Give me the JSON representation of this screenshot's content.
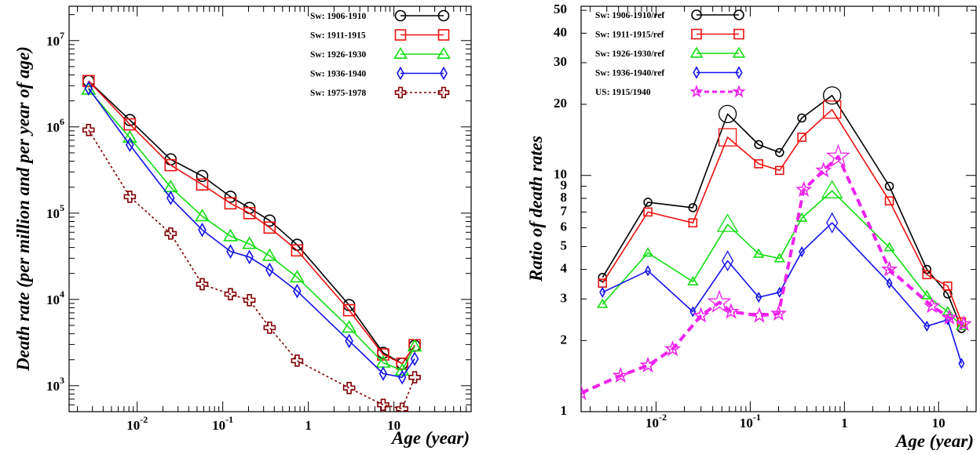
{
  "chart_data": [
    {
      "type": "line",
      "xlabel": "Age (year)",
      "ylabel": "Death rate (per million and per year of age)",
      "xscale": "log",
      "yscale": "log",
      "xlim": [
        0.0016,
        80
      ],
      "ylim": [
        500,
        25000000
      ],
      "legend_position": "top-right",
      "x_tick_labels": [
        {
          "value": 0.01,
          "base": "10",
          "exp": "-2"
        },
        {
          "value": 0.1,
          "base": "10",
          "exp": "-1"
        },
        {
          "value": 1,
          "base": "1",
          "exp": ""
        },
        {
          "value": 10,
          "base": "10",
          "exp": ""
        }
      ],
      "y_tick_labels": [
        {
          "value": 1000,
          "base": "10",
          "exp": "3"
        },
        {
          "value": 10000,
          "base": "10",
          "exp": "4"
        },
        {
          "value": 100000,
          "base": "10",
          "exp": "5"
        },
        {
          "value": 1000000,
          "base": "10",
          "exp": "6"
        },
        {
          "value": 10000000,
          "base": "10",
          "exp": "7"
        }
      ],
      "series": [
        {
          "name": "Sw: 1906-1910",
          "color": "#000000",
          "marker": "circle",
          "dash": "",
          "points": [
            [
              0.0027,
              3400000
            ],
            [
              0.0082,
              1200000
            ],
            [
              0.0246,
              420000
            ],
            [
              0.0575,
              270000
            ],
            [
              0.123,
              155000
            ],
            [
              0.205,
              115000
            ],
            [
              0.353,
              82000
            ],
            [
              0.74,
              43000
            ],
            [
              3.0,
              8600
            ],
            [
              7.5,
              2400
            ],
            [
              12.5,
              1800
            ],
            [
              17.5,
              2900
            ]
          ]
        },
        {
          "name": "Sw: 1911-1915",
          "color": "#ee1111",
          "marker": "square",
          "dash": "",
          "points": [
            [
              0.0027,
              3400000
            ],
            [
              0.0082,
              1070000
            ],
            [
              0.0246,
              360000
            ],
            [
              0.0575,
              215000
            ],
            [
              0.123,
              130000
            ],
            [
              0.205,
              100000
            ],
            [
              0.353,
              68000
            ],
            [
              0.74,
              37000
            ],
            [
              3.0,
              7500
            ],
            [
              7.5,
              2300
            ],
            [
              12.5,
              1800
            ],
            [
              17.5,
              2950
            ]
          ]
        },
        {
          "name": "Sw: 1926-1930",
          "color": "#11dd11",
          "marker": "triangle",
          "dash": "",
          "points": [
            [
              0.0027,
              2700000
            ],
            [
              0.0082,
              750000
            ],
            [
              0.0246,
              200000
            ],
            [
              0.0575,
              92000
            ],
            [
              0.123,
              54000
            ],
            [
              0.205,
              44000
            ],
            [
              0.353,
              32000
            ],
            [
              0.74,
              18000
            ],
            [
              3.0,
              4700
            ],
            [
              7.5,
              1850
            ],
            [
              12.5,
              1500
            ],
            [
              17.5,
              2850
            ]
          ]
        },
        {
          "name": "Sw: 1936-1940",
          "color": "#1111ee",
          "marker": "diamond",
          "dash": "",
          "points": [
            [
              0.0027,
              2800000
            ],
            [
              0.0082,
              620000
            ],
            [
              0.0246,
              150000
            ],
            [
              0.0575,
              64000
            ],
            [
              0.123,
              36000
            ],
            [
              0.205,
              31000
            ],
            [
              0.353,
              22000
            ],
            [
              0.74,
              12500
            ],
            [
              3.0,
              3300
            ],
            [
              7.5,
              1380
            ],
            [
              12.5,
              1250
            ],
            [
              17.5,
              2050
            ]
          ]
        },
        {
          "name": "Sw: 1975-1978",
          "color": "#800000",
          "marker": "cross",
          "dash": "3,3",
          "points": [
            [
              0.0027,
              920000
            ],
            [
              0.0082,
              155000
            ],
            [
              0.0246,
              58000
            ],
            [
              0.0575,
              15000
            ],
            [
              0.123,
              11500
            ],
            [
              0.205,
              9800
            ],
            [
              0.353,
              4700
            ],
            [
              0.74,
              1950
            ],
            [
              3.0,
              940
            ],
            [
              7.5,
              600
            ],
            [
              12.5,
              540
            ],
            [
              17.5,
              1250
            ]
          ]
        }
      ]
    },
    {
      "type": "line",
      "xlabel": "Age (year)",
      "ylabel": "Ratio of death rates",
      "xscale": "log",
      "yscale": "log",
      "xlim": [
        0.0016,
        25
      ],
      "ylim": [
        1,
        52
      ],
      "legend_position": "top-left",
      "x_tick_labels": [
        {
          "value": 0.01,
          "base": "10",
          "exp": "-2"
        },
        {
          "value": 0.1,
          "base": "10",
          "exp": "-1"
        },
        {
          "value": 1,
          "base": "1",
          "exp": ""
        },
        {
          "value": 10,
          "base": "10",
          "exp": ""
        }
      ],
      "y_tick_labels": [
        {
          "value": 1,
          "base": "1",
          "exp": ""
        },
        {
          "value": 2,
          "base": "2",
          "exp": ""
        },
        {
          "value": 3,
          "base": "3",
          "exp": ""
        },
        {
          "value": 4,
          "base": "4",
          "exp": ""
        },
        {
          "value": 5,
          "base": "5",
          "exp": ""
        },
        {
          "value": 6,
          "base": "6",
          "exp": ""
        },
        {
          "value": 7,
          "base": "7",
          "exp": ""
        },
        {
          "value": 8,
          "base": "8",
          "exp": ""
        },
        {
          "value": 9,
          "base": "9",
          "exp": ""
        },
        {
          "value": 10,
          "base": "10",
          "exp": ""
        },
        {
          "value": 20,
          "base": "20",
          "exp": ""
        },
        {
          "value": 30,
          "base": "30",
          "exp": ""
        },
        {
          "value": 40,
          "base": "40",
          "exp": ""
        },
        {
          "value": 50,
          "base": "50",
          "exp": ""
        }
      ],
      "series": [
        {
          "name": "Sw: 1906-1910/ref",
          "color": "#000000",
          "marker": "circle",
          "dash": "",
          "points": [
            [
              0.0027,
              3.7
            ],
            [
              0.0082,
              7.7
            ],
            [
              0.0246,
              7.3
            ],
            [
              0.0575,
              18.2
            ],
            [
              0.123,
              13.5
            ],
            [
              0.205,
              12.5
            ],
            [
              0.353,
              17.5
            ],
            [
              0.74,
              21.8
            ],
            [
              3.0,
              9.0
            ],
            [
              7.5,
              4.0
            ],
            [
              12.5,
              3.15
            ],
            [
              17.5,
              2.25
            ]
          ]
        },
        {
          "name": "Sw: 1911-1915/ref",
          "color": "#ee1111",
          "marker": "square",
          "dash": "",
          "points": [
            [
              0.0027,
              3.5
            ],
            [
              0.0082,
              7.0
            ],
            [
              0.0246,
              6.3
            ],
            [
              0.0575,
              14.5
            ],
            [
              0.123,
              11.2
            ],
            [
              0.205,
              10.5
            ],
            [
              0.353,
              14.5
            ],
            [
              0.74,
              19.0
            ],
            [
              3.0,
              7.8
            ],
            [
              7.5,
              3.8
            ],
            [
              12.5,
              3.4
            ],
            [
              17.5,
              2.4
            ]
          ]
        },
        {
          "name": "Sw: 1926-1930/ref",
          "color": "#11dd11",
          "marker": "triangle",
          "dash": "",
          "points": [
            [
              0.0027,
              2.85
            ],
            [
              0.0082,
              4.7
            ],
            [
              0.0246,
              3.55
            ],
            [
              0.0575,
              6.2
            ],
            [
              0.123,
              4.65
            ],
            [
              0.205,
              4.45
            ],
            [
              0.353,
              6.6
            ],
            [
              0.74,
              8.6
            ],
            [
              3.0,
              4.95
            ],
            [
              7.5,
              3.1
            ],
            [
              12.5,
              2.65
            ],
            [
              17.5,
              2.3
            ]
          ]
        },
        {
          "name": "Sw: 1936-1940/ref",
          "color": "#1111ee",
          "marker": "diamond",
          "dash": "",
          "points": [
            [
              0.0027,
              3.2
            ],
            [
              0.0082,
              3.95
            ],
            [
              0.0246,
              2.65
            ],
            [
              0.0575,
              4.35
            ],
            [
              0.123,
              3.05
            ],
            [
              0.205,
              3.2
            ],
            [
              0.353,
              4.75
            ],
            [
              0.74,
              6.3
            ],
            [
              3.0,
              3.5
            ],
            [
              7.5,
              2.3
            ],
            [
              12.5,
              2.45
            ],
            [
              17.5,
              1.6
            ]
          ]
        },
        {
          "name": "US: 1915/1940",
          "color": "#ee22ee",
          "marker": "star",
          "dash": "10,6",
          "points": [
            [
              0.0016,
              1.2
            ],
            [
              0.0042,
              1.42
            ],
            [
              0.0082,
              1.57
            ],
            [
              0.015,
              1.84
            ],
            [
              0.03,
              2.55
            ],
            [
              0.047,
              2.9
            ],
            [
              0.0625,
              2.65
            ],
            [
              0.125,
              2.55
            ],
            [
              0.2,
              2.6
            ],
            [
              0.37,
              8.7
            ],
            [
              0.6,
              10.5
            ],
            [
              0.86,
              12.0
            ],
            [
              3.0,
              4.0
            ],
            [
              8.5,
              2.8
            ],
            [
              13.0,
              2.5
            ],
            [
              18.5,
              2.35
            ]
          ]
        }
      ]
    }
  ]
}
